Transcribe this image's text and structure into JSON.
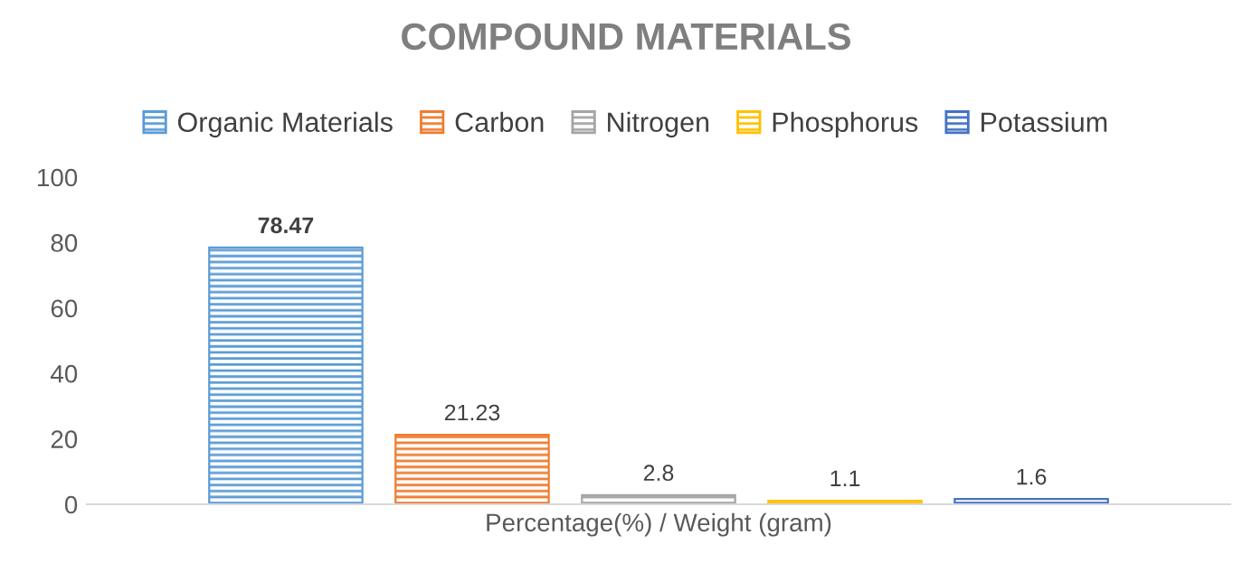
{
  "chart_data": {
    "type": "bar",
    "title": "COMPOUND MATERIALS",
    "categories": [
      "Percentage(%) / Weight (gram)"
    ],
    "series": [
      {
        "name": "Organic Materials",
        "color": "#5b9bd5",
        "values": [
          78.47
        ]
      },
      {
        "name": "Carbon",
        "color": "#ed7d31",
        "values": [
          21.23
        ]
      },
      {
        "name": "Nitrogen",
        "color": "#a5a5a5",
        "values": [
          2.8
        ]
      },
      {
        "name": "Phosphorus",
        "color": "#ffc000",
        "values": [
          1.1
        ]
      },
      {
        "name": "Potassium",
        "color": "#4472c4",
        "values": [
          1.6
        ]
      }
    ],
    "ylim": [
      0,
      100
    ],
    "yticks": [
      0,
      20,
      40,
      60,
      80,
      100
    ],
    "grid": false,
    "legend": "top",
    "data_labels": true
  }
}
